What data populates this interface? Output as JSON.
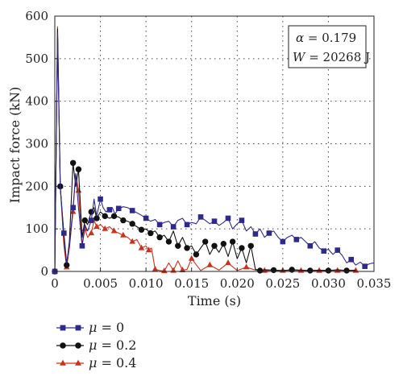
{
  "chart_data": {
    "type": "line",
    "xlabel": "Time (s)",
    "ylabel": "Impact force (kN)",
    "xlim": [
      0,
      0.035
    ],
    "ylim": [
      0,
      600
    ],
    "xticks": [
      "0",
      "0.005",
      "0.010",
      "0.015",
      "0.020",
      "0.025",
      "0.030",
      "0.035"
    ],
    "yticks": [
      "0",
      "100",
      "200",
      "300",
      "400",
      "500",
      "600"
    ],
    "grid": true,
    "legend_position": "below-left",
    "annotation": {
      "alpha_var": "α",
      "alpha_eq": " = 0.179",
      "w_var": "W",
      "w_eq": " = 20268 J"
    },
    "series": [
      {
        "name": "μ = 0",
        "name_var": "μ",
        "name_eq": " = 0",
        "color": "#2e2a8c",
        "marker": "square",
        "x": [
          0,
          0.0003,
          0.0006,
          0.001,
          0.0013,
          0.0016,
          0.002,
          0.0023,
          0.0026,
          0.003,
          0.0033,
          0.0036,
          0.004,
          0.0043,
          0.0046,
          0.005,
          0.0053,
          0.0056,
          0.006,
          0.0063,
          0.0066,
          0.007,
          0.0075,
          0.008,
          0.0085,
          0.009,
          0.0095,
          0.01,
          0.0105,
          0.011,
          0.0115,
          0.012,
          0.0125,
          0.013,
          0.0135,
          0.014,
          0.0145,
          0.015,
          0.0155,
          0.016,
          0.0165,
          0.017,
          0.0175,
          0.018,
          0.0185,
          0.019,
          0.0195,
          0.02,
          0.0205,
          0.021,
          0.0215,
          0.022,
          0.0225,
          0.023,
          0.0235,
          0.024,
          0.0245,
          0.025,
          0.0255,
          0.026,
          0.0265,
          0.027,
          0.0275,
          0.028,
          0.0285,
          0.029,
          0.0295,
          0.03,
          0.0305,
          0.031,
          0.0315,
          0.032,
          0.0325,
          0.033,
          0.0335,
          0.034,
          0.0345,
          0.035
        ],
        "y": [
          0,
          560,
          195,
          90,
          20,
          60,
          150,
          230,
          150,
          60,
          110,
          95,
          120,
          170,
          130,
          170,
          150,
          140,
          145,
          150,
          135,
          148,
          152,
          150,
          143,
          138,
          132,
          125,
          118,
          122,
          110,
          115,
          118,
          105,
          120,
          125,
          110,
          115,
          112,
          128,
          120,
          112,
          118,
          108,
          115,
          125,
          100,
          112,
          120,
          95,
          105,
          88,
          100,
          80,
          90,
          95,
          80,
          70,
          80,
          85,
          75,
          80,
          70,
          60,
          70,
          55,
          48,
          52,
          40,
          50,
          38,
          20,
          28,
          15,
          22,
          12,
          18,
          20
        ]
      },
      {
        "name": "μ = 0.2",
        "name_var": "μ",
        "name_eq": " = 0.2",
        "color": "#111111",
        "marker": "circle",
        "x": [
          0,
          0.0003,
          0.0006,
          0.001,
          0.0013,
          0.0016,
          0.002,
          0.0023,
          0.0026,
          0.003,
          0.0033,
          0.0036,
          0.004,
          0.0043,
          0.0046,
          0.005,
          0.0055,
          0.006,
          0.0065,
          0.007,
          0.0075,
          0.008,
          0.0085,
          0.009,
          0.0095,
          0.01,
          0.0105,
          0.011,
          0.0115,
          0.012,
          0.0125,
          0.013,
          0.0135,
          0.014,
          0.0145,
          0.015,
          0.0155,
          0.016,
          0.0165,
          0.017,
          0.0175,
          0.018,
          0.0185,
          0.019,
          0.0195,
          0.02,
          0.0205,
          0.021,
          0.0215,
          0.022,
          0.0225,
          0.023,
          0.024,
          0.025,
          0.026,
          0.027,
          0.028,
          0.029,
          0.03,
          0.031,
          0.032,
          0.033
        ],
        "y": [
          0,
          570,
          200,
          80,
          15,
          70,
          255,
          200,
          240,
          80,
          120,
          110,
          140,
          150,
          125,
          140,
          130,
          125,
          130,
          128,
          120,
          118,
          112,
          105,
          98,
          100,
          90,
          95,
          80,
          85,
          70,
          95,
          60,
          80,
          55,
          60,
          40,
          55,
          70,
          40,
          60,
          45,
          65,
          35,
          70,
          30,
          55,
          20,
          60,
          5,
          2,
          4,
          3,
          2,
          4,
          3,
          2,
          3,
          2,
          4,
          2,
          3
        ]
      },
      {
        "name": "μ = 0.4",
        "name_var": "μ",
        "name_eq": " = 0.4",
        "color": "#c8321e",
        "marker": "triangle",
        "x": [
          0,
          0.0003,
          0.0006,
          0.001,
          0.0013,
          0.0016,
          0.002,
          0.0023,
          0.0026,
          0.003,
          0.0033,
          0.0036,
          0.004,
          0.0043,
          0.0046,
          0.005,
          0.0055,
          0.006,
          0.0065,
          0.007,
          0.0075,
          0.008,
          0.0085,
          0.009,
          0.0095,
          0.01,
          0.0103,
          0.0106,
          0.011,
          0.0115,
          0.012,
          0.0125,
          0.013,
          0.0135,
          0.014,
          0.0145,
          0.015,
          0.016,
          0.017,
          0.018,
          0.019,
          0.02,
          0.021,
          0.022,
          0.023,
          0.024,
          0.025,
          0.026,
          0.027,
          0.028,
          0.029,
          0.03,
          0.031,
          0.032,
          0.033
        ],
        "y": [
          0,
          575,
          200,
          60,
          10,
          55,
          140,
          230,
          190,
          60,
          100,
          80,
          90,
          120,
          105,
          110,
          100,
          105,
          95,
          90,
          85,
          80,
          70,
          75,
          55,
          60,
          50,
          55,
          5,
          2,
          1,
          20,
          2,
          25,
          3,
          5,
          30,
          2,
          15,
          3,
          20,
          2,
          10,
          3,
          2,
          3,
          2,
          3,
          2,
          3,
          2,
          3,
          2,
          3,
          2
        ]
      }
    ]
  }
}
